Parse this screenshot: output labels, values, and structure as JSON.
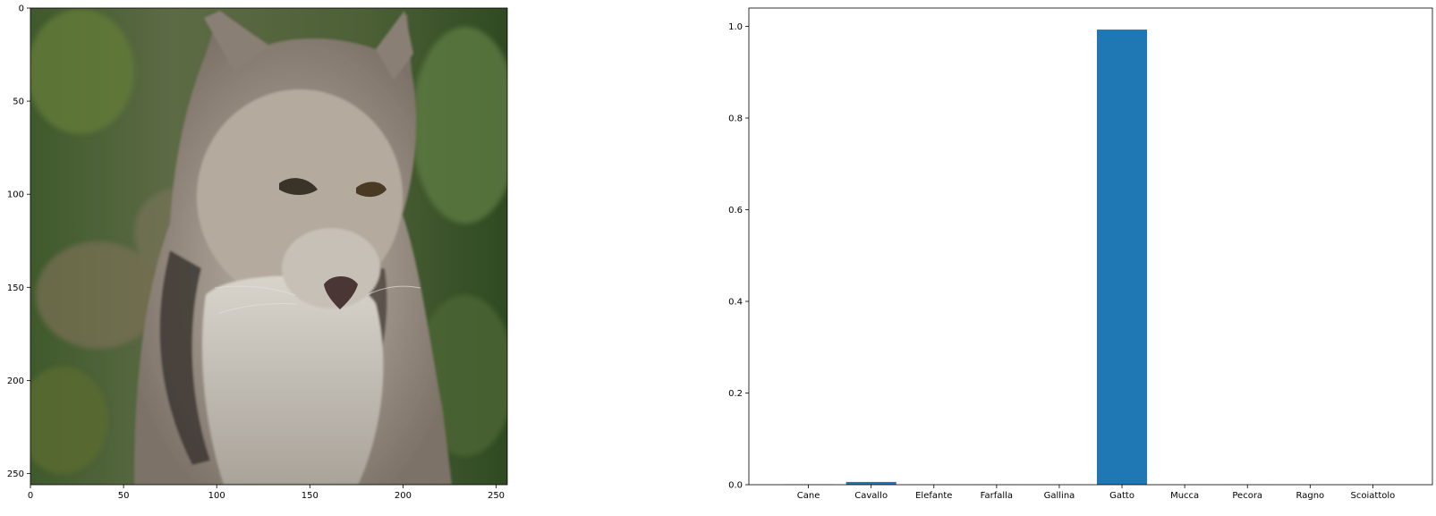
{
  "chart_data": [
    {
      "type": "image",
      "content": "photo of a lynx",
      "xlim": [
        0,
        256
      ],
      "ylim": [
        256,
        0
      ],
      "x_ticks": [
        0,
        50,
        100,
        150,
        200,
        250
      ],
      "y_ticks": [
        0,
        50,
        100,
        150,
        200,
        250
      ],
      "x_tick_labels": [
        "0",
        "50",
        "100",
        "150",
        "200",
        "250"
      ],
      "y_tick_labels": [
        "0",
        "50",
        "100",
        "150",
        "200",
        "250"
      ],
      "title": "",
      "xlabel": "",
      "ylabel": ""
    },
    {
      "type": "bar",
      "categories": [
        "Cane",
        "Cavallo",
        "Elefante",
        "Farfalla",
        "Gallina",
        "Gatto",
        "Mucca",
        "Pecora",
        "Ragno",
        "Scoiattolo"
      ],
      "values": [
        0.0005,
        0.006,
        0.0003,
        0.0002,
        0.0002,
        0.993,
        0.0002,
        0.0003,
        0.0001,
        0.0002
      ],
      "ylim": [
        0,
        1.04
      ],
      "y_ticks": [
        0.0,
        0.2,
        0.4,
        0.6,
        0.8,
        1.0
      ],
      "y_tick_labels": [
        "0.0",
        "0.2",
        "0.4",
        "0.6",
        "0.8",
        "1.0"
      ],
      "grid": false,
      "title": "",
      "xlabel": "",
      "ylabel": "",
      "bar_color": "#1f77b4"
    }
  ]
}
